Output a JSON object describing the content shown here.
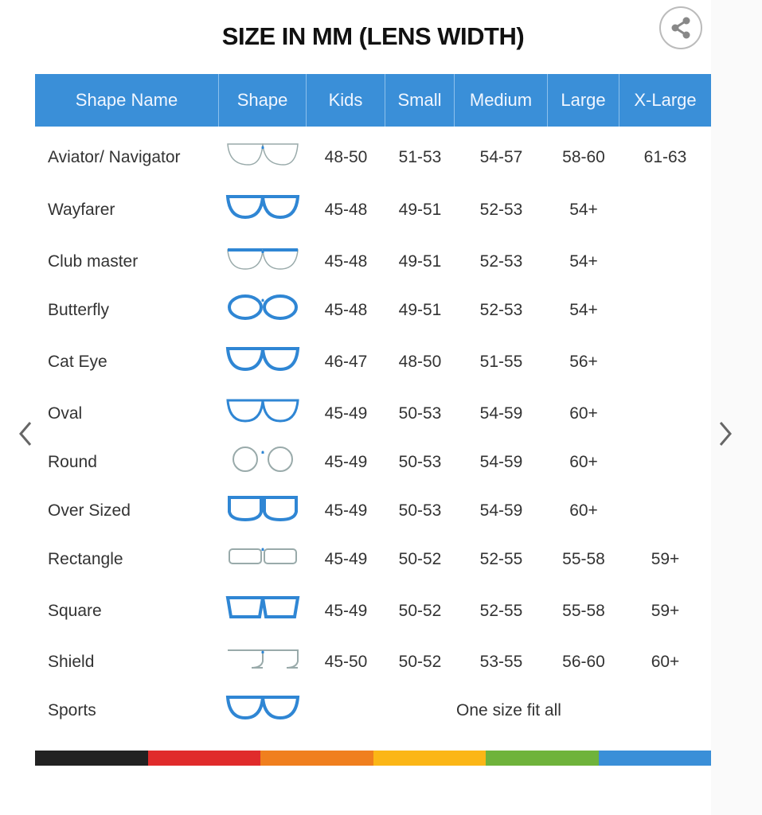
{
  "title": "SIZE IN MM (LENS WIDTH)",
  "icons": {
    "share": "share-icon",
    "prev": "chevron-left-icon",
    "next": "chevron-right-icon"
  },
  "colors": {
    "header": "#3a8fd8",
    "frame": "#2f86d4",
    "bar": [
      "#222222",
      "#e02b2b",
      "#f07f1e",
      "#fbb616",
      "#6fb33b",
      "#3a8fd8"
    ]
  },
  "columns": [
    "Shape Name",
    "Shape",
    "Kids",
    "Small",
    "Medium",
    "Large",
    "X-Large"
  ],
  "rows": [
    {
      "name": "Aviator/ Navigator",
      "shape": "aviator",
      "sizes": [
        "48-50",
        "51-53",
        "54-57",
        "58-60",
        "61-63"
      ]
    },
    {
      "name": "Wayfarer",
      "shape": "wayfarer",
      "sizes": [
        "45-48",
        "49-51",
        "52-53",
        "54+",
        ""
      ]
    },
    {
      "name": "Club master",
      "shape": "clubmaster",
      "sizes": [
        "45-48",
        "49-51",
        "52-53",
        "54+",
        ""
      ]
    },
    {
      "name": "Butterfly",
      "shape": "butterfly",
      "sizes": [
        "45-48",
        "49-51",
        "52-53",
        "54+",
        ""
      ]
    },
    {
      "name": "Cat Eye",
      "shape": "cateye",
      "sizes": [
        "46-47",
        "48-50",
        "51-55",
        "56+",
        ""
      ]
    },
    {
      "name": "Oval",
      "shape": "oval",
      "sizes": [
        "45-49",
        "50-53",
        "54-59",
        "60+",
        ""
      ]
    },
    {
      "name": "Round",
      "shape": "round",
      "sizes": [
        "45-49",
        "50-53",
        "54-59",
        "60+",
        ""
      ]
    },
    {
      "name": "Over Sized",
      "shape": "oversized",
      "sizes": [
        "45-49",
        "50-53",
        "54-59",
        "60+",
        ""
      ]
    },
    {
      "name": "Rectangle",
      "shape": "rectangle",
      "sizes": [
        "45-49",
        "50-52",
        "52-55",
        "55-58",
        "59+"
      ]
    },
    {
      "name": "Square",
      "shape": "square",
      "sizes": [
        "45-49",
        "50-52",
        "52-55",
        "55-58",
        "59+"
      ]
    },
    {
      "name": "Shield",
      "shape": "shield",
      "sizes": [
        "45-50",
        "50-52",
        "53-55",
        "56-60",
        "60+"
      ]
    },
    {
      "name": "Sports",
      "shape": "sports",
      "sizes": [],
      "note": "One size fit all"
    }
  ]
}
